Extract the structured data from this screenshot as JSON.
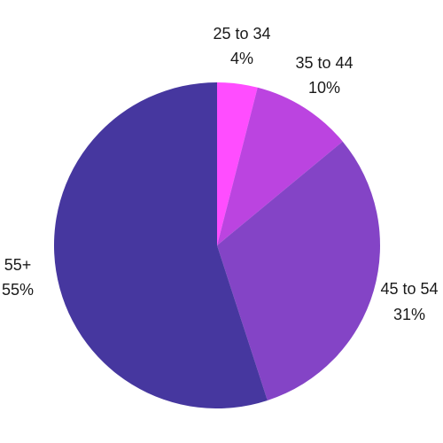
{
  "chart_data": {
    "type": "pie",
    "slices": [
      {
        "label": "25 to 34",
        "value": 4,
        "display": "4%",
        "color": "#ff4dff"
      },
      {
        "label": "35 to 44",
        "value": 10,
        "display": "10%",
        "color": "#bb44e0"
      },
      {
        "label": "45 to 54",
        "value": 31,
        "display": "31%",
        "color": "#8444c6"
      },
      {
        "label": "55+",
        "value": 55,
        "display": "55%",
        "color": "#46379f"
      }
    ],
    "start_angle": "12 o'clock",
    "direction": "clockwise"
  }
}
